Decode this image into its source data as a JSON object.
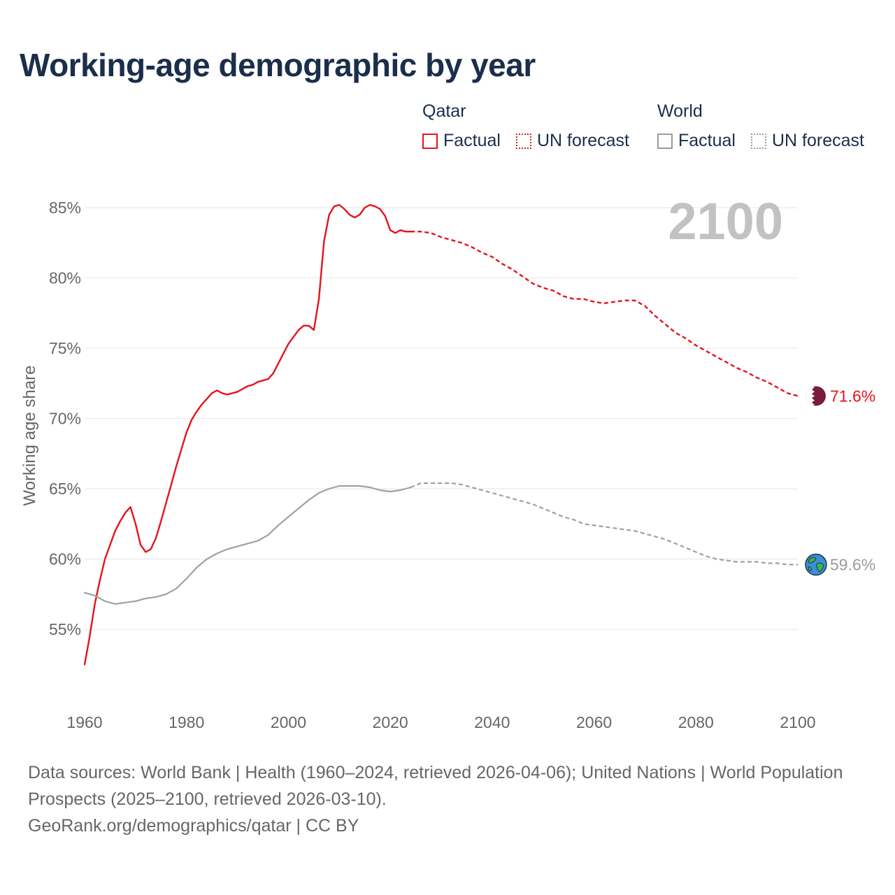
{
  "title": "Working-age demographic by year",
  "legend": {
    "qatar": {
      "name": "Qatar",
      "factual": "Factual",
      "forecast": "UN forecast"
    },
    "world": {
      "name": "World",
      "factual": "Factual",
      "forecast": "UN forecast"
    }
  },
  "colors": {
    "qatar": "#e5131c",
    "world": "#a0a0a0",
    "qatar_flag": "#7a1a3d",
    "year_label": "#c2c2c2",
    "title": "#1b2e4b"
  },
  "footer": {
    "sources": "Data sources: World Bank | Health (1960–2024, retrieved 2026-04-06); United Nations | World Population Prospects (2025–2100, retrieved 2026-03-10).",
    "credit": "GeoRank.org/demographics/qatar | CC BY"
  },
  "chart_data": {
    "type": "line",
    "title": "Working-age demographic by year",
    "ylabel": "Working age share",
    "xlabel": "",
    "current_year": "2100",
    "xlim": [
      1960,
      2100
    ],
    "ylim": [
      50,
      87
    ],
    "x_ticks": [
      "1960",
      "1980",
      "2000",
      "2020",
      "2040",
      "2060",
      "2080",
      "2100"
    ],
    "y_ticks": [
      {
        "value": 55,
        "label": "55%"
      },
      {
        "value": 60,
        "label": "60%"
      },
      {
        "value": 65,
        "label": "65%"
      },
      {
        "value": 70,
        "label": "70%"
      },
      {
        "value": 75,
        "label": "75%"
      },
      {
        "value": 80,
        "label": "80%"
      },
      {
        "value": 85,
        "label": "85%"
      }
    ],
    "series": [
      {
        "name": "Qatar",
        "end_label": "71.6%",
        "factual": {
          "x": [
            1960,
            1961,
            1962,
            1963,
            1964,
            1965,
            1966,
            1967,
            1968,
            1969,
            1970,
            1971,
            1972,
            1973,
            1974,
            1975,
            1976,
            1977,
            1978,
            1979,
            1980,
            1981,
            1982,
            1983,
            1984,
            1985,
            1986,
            1987,
            1988,
            1989,
            1990,
            1991,
            1992,
            1993,
            1994,
            1995,
            1996,
            1997,
            1998,
            1999,
            2000,
            2001,
            2002,
            2003,
            2004,
            2005,
            2006,
            2007,
            2008,
            2009,
            2010,
            2011,
            2012,
            2013,
            2014,
            2015,
            2016,
            2017,
            2018,
            2019,
            2020,
            2021,
            2022,
            2023,
            2024
          ],
          "y": [
            52.5,
            54.5,
            56.8,
            58.5,
            60.0,
            61.0,
            62.0,
            62.7,
            63.3,
            63.7,
            62.5,
            61.0,
            60.5,
            60.7,
            61.5,
            62.7,
            64.0,
            65.3,
            66.6,
            67.8,
            69.0,
            69.9,
            70.5,
            71.0,
            71.4,
            71.8,
            72.0,
            71.8,
            71.7,
            71.8,
            71.9,
            72.1,
            72.3,
            72.4,
            72.6,
            72.7,
            72.8,
            73.2,
            73.9,
            74.6,
            75.3,
            75.8,
            76.3,
            76.6,
            76.6,
            76.3,
            78.5,
            82.6,
            84.5,
            85.1,
            85.2,
            84.9,
            84.5,
            84.3,
            84.5,
            85.0,
            85.2,
            85.1,
            84.9,
            84.4,
            83.4,
            83.2,
            83.4,
            83.3,
            83.3
          ]
        },
        "forecast": {
          "x": [
            2024,
            2026,
            2028,
            2030,
            2032,
            2034,
            2036,
            2038,
            2040,
            2042,
            2044,
            2046,
            2048,
            2050,
            2052,
            2054,
            2056,
            2058,
            2060,
            2062,
            2064,
            2066,
            2068,
            2070,
            2072,
            2074,
            2076,
            2078,
            2080,
            2082,
            2084,
            2086,
            2088,
            2090,
            2092,
            2094,
            2096,
            2098,
            2100
          ],
          "y": [
            83.3,
            83.3,
            83.2,
            82.9,
            82.7,
            82.5,
            82.2,
            81.8,
            81.5,
            81.0,
            80.6,
            80.1,
            79.6,
            79.3,
            79.1,
            78.7,
            78.5,
            78.5,
            78.3,
            78.2,
            78.3,
            78.4,
            78.4,
            78.0,
            77.3,
            76.7,
            76.1,
            75.7,
            75.2,
            74.8,
            74.4,
            74.0,
            73.6,
            73.3,
            72.9,
            72.6,
            72.2,
            71.8,
            71.6
          ]
        }
      },
      {
        "name": "World",
        "end_label": "59.6%",
        "factual": {
          "x": [
            1960,
            1962,
            1964,
            1966,
            1968,
            1970,
            1972,
            1974,
            1976,
            1978,
            1980,
            1982,
            1984,
            1986,
            1988,
            1990,
            1992,
            1994,
            1996,
            1998,
            2000,
            2002,
            2004,
            2006,
            2008,
            2010,
            2012,
            2014,
            2016,
            2018,
            2020,
            2022,
            2024
          ],
          "y": [
            57.6,
            57.4,
            57.0,
            56.8,
            56.9,
            57.0,
            57.2,
            57.3,
            57.5,
            57.9,
            58.6,
            59.4,
            60.0,
            60.4,
            60.7,
            60.9,
            61.1,
            61.3,
            61.7,
            62.4,
            63.0,
            63.6,
            64.2,
            64.7,
            65.0,
            65.2,
            65.2,
            65.2,
            65.1,
            64.9,
            64.8,
            64.9,
            65.1
          ]
        },
        "forecast": {
          "x": [
            2024,
            2026,
            2028,
            2030,
            2032,
            2034,
            2036,
            2038,
            2040,
            2042,
            2044,
            2046,
            2048,
            2050,
            2052,
            2054,
            2056,
            2058,
            2060,
            2062,
            2064,
            2066,
            2068,
            2070,
            2072,
            2074,
            2076,
            2078,
            2080,
            2082,
            2084,
            2086,
            2088,
            2090,
            2092,
            2094,
            2096,
            2098,
            2100
          ],
          "y": [
            65.1,
            65.4,
            65.4,
            65.4,
            65.4,
            65.3,
            65.1,
            64.9,
            64.7,
            64.5,
            64.3,
            64.1,
            63.9,
            63.6,
            63.3,
            63.0,
            62.8,
            62.5,
            62.4,
            62.3,
            62.2,
            62.1,
            62.0,
            61.8,
            61.6,
            61.4,
            61.1,
            60.8,
            60.5,
            60.2,
            60.0,
            59.9,
            59.8,
            59.8,
            59.8,
            59.7,
            59.7,
            59.6,
            59.6
          ]
        }
      }
    ]
  }
}
